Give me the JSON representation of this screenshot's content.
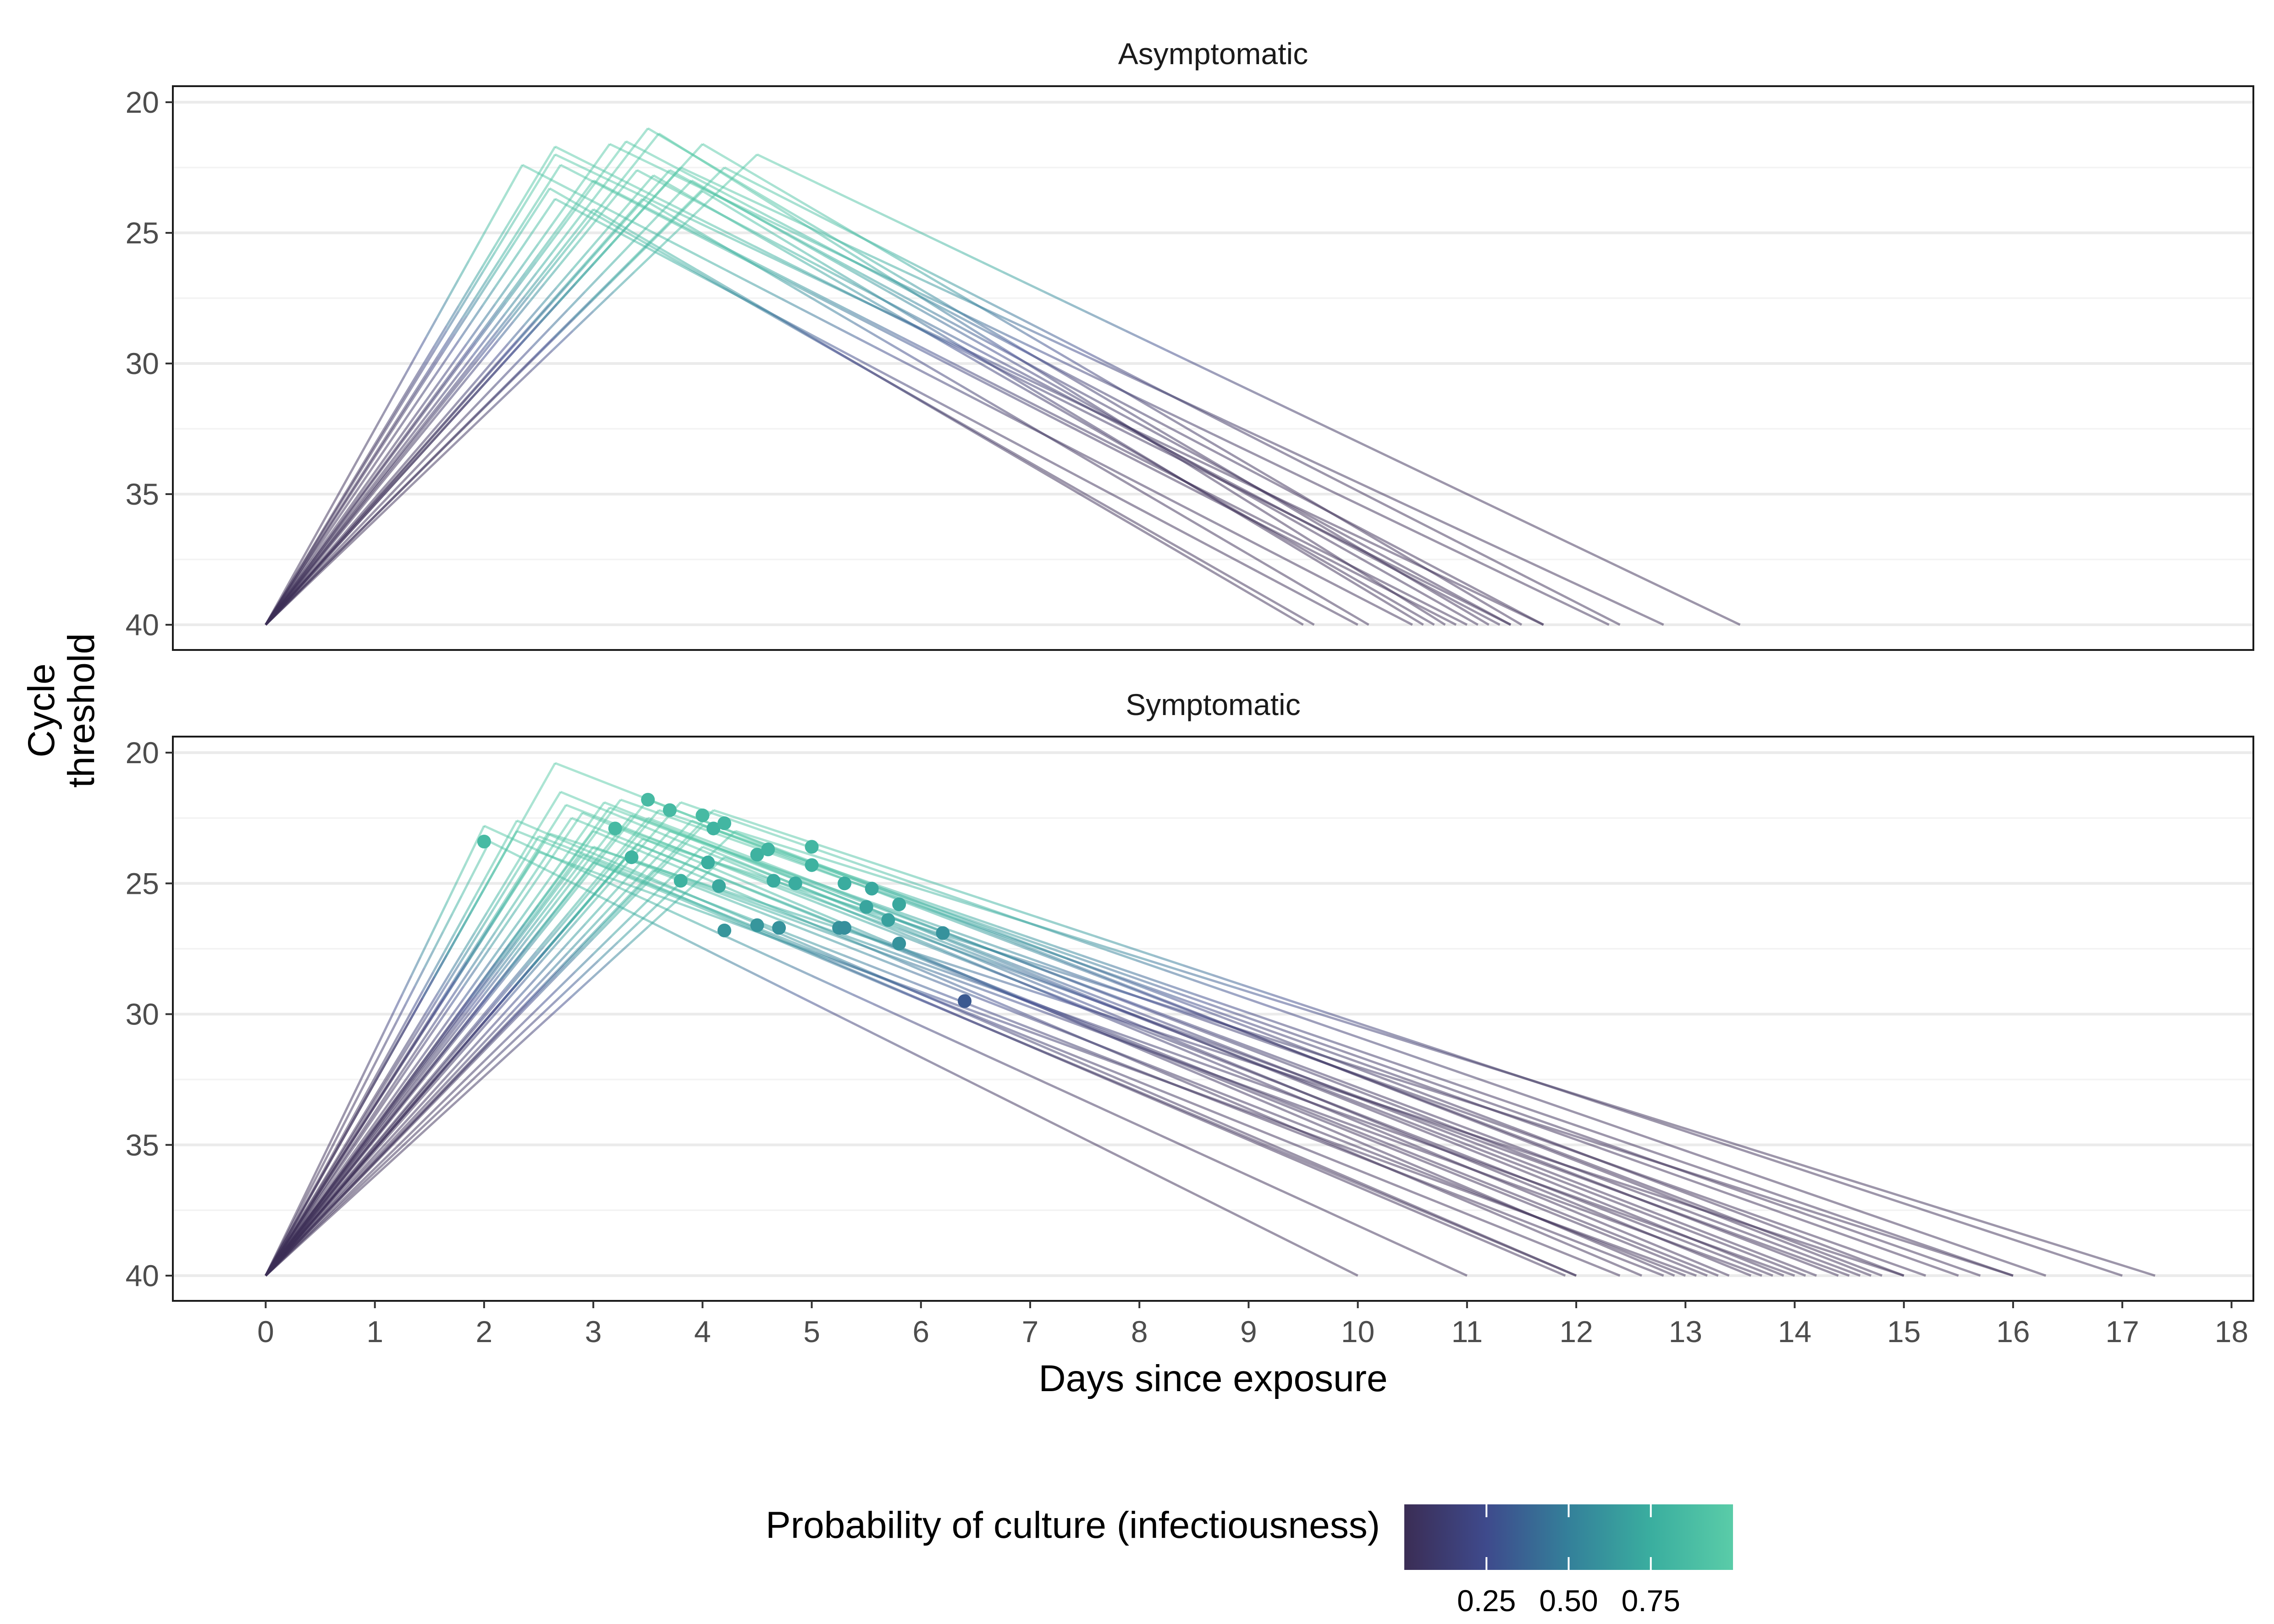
{
  "chart_data": {
    "type": "line",
    "facets": [
      "Asymptomatic",
      "Symptomatic"
    ],
    "xlabel": "Days since exposure",
    "ylabel": [
      "Cycle",
      "threshold"
    ],
    "xlim": [
      -0.85,
      18.2
    ],
    "ylim": [
      20,
      40
    ],
    "y_reversed": true,
    "x_ticks": [
      0,
      1,
      2,
      3,
      4,
      5,
      6,
      7,
      8,
      9,
      10,
      11,
      12,
      13,
      14,
      15,
      16,
      17,
      18
    ],
    "x_tick_labels": [
      "0",
      "1",
      "2",
      "3",
      "4",
      "5",
      "6",
      "7",
      "8",
      "9",
      "10",
      "11",
      "12",
      "13",
      "14",
      "15",
      "16",
      "17",
      "18"
    ],
    "y_ticks": [
      20,
      25,
      30,
      35,
      40
    ],
    "y_tick_labels": [
      "20",
      "25",
      "30",
      "35",
      "40"
    ],
    "y_minor_ticks": [
      22.5,
      27.5,
      32.5,
      37.5
    ],
    "legend": {
      "title": "Probability of culture (infectiousness)",
      "position": "bottom",
      "tick_values": [
        0.25,
        0.5,
        0.75
      ],
      "tick_labels": [
        "0.25",
        "0.50",
        "0.75"
      ],
      "range": [
        0,
        1
      ],
      "colors": [
        "#3b2d55",
        "#3e4a8c",
        "#34809a",
        "#3aae9f",
        "#5acca8"
      ]
    },
    "trajectories": {
      "Asymptomatic": [
        {
          "peak_day": 2.35,
          "peak_ct": 22.4,
          "end_day": 10.5
        },
        {
          "peak_day": 2.65,
          "peak_ct": 21.7,
          "end_day": 11.4
        },
        {
          "peak_day": 2.65,
          "peak_ct": 22.0,
          "end_day": 11.7
        },
        {
          "peak_day": 2.7,
          "peak_ct": 22.4,
          "end_day": 10.9
        },
        {
          "peak_day": 2.6,
          "peak_ct": 23.3,
          "end_day": 9.6
        },
        {
          "peak_day": 2.65,
          "peak_ct": 23.7,
          "end_day": 10.0
        },
        {
          "peak_day": 3.0,
          "peak_ct": 23.0,
          "end_day": 11.0
        },
        {
          "peak_day": 3.15,
          "peak_ct": 21.6,
          "end_day": 12.3
        },
        {
          "peak_day": 3.3,
          "peak_ct": 21.5,
          "end_day": 11.7
        },
        {
          "peak_day": 3.5,
          "peak_ct": 21.0,
          "end_day": 11.2
        },
        {
          "peak_day": 3.6,
          "peak_ct": 21.2,
          "end_day": 10.8
        },
        {
          "peak_day": 3.4,
          "peak_ct": 22.6,
          "end_day": 11.3
        },
        {
          "peak_day": 3.55,
          "peak_ct": 22.8,
          "end_day": 10.7
        },
        {
          "peak_day": 3.45,
          "peak_ct": 23.7,
          "end_day": 10.1
        },
        {
          "peak_day": 3.0,
          "peak_ct": 24.1,
          "end_day": 9.5
        },
        {
          "peak_day": 3.7,
          "peak_ct": 22.6,
          "end_day": 11.4
        },
        {
          "peak_day": 3.8,
          "peak_ct": 22.5,
          "end_day": 12.8
        },
        {
          "peak_day": 4.0,
          "peak_ct": 21.6,
          "end_day": 11.5
        },
        {
          "peak_day": 4.0,
          "peak_ct": 23.4,
          "end_day": 10.6
        },
        {
          "peak_day": 4.2,
          "peak_ct": 22.5,
          "end_day": 12.4
        },
        {
          "peak_day": 4.5,
          "peak_ct": 22.0,
          "end_day": 13.5
        },
        {
          "peak_day": 3.9,
          "peak_ct": 23.0,
          "end_day": 11.1
        }
      ],
      "Symptomatic": [
        {
          "peak_day": 2.05,
          "peak_ct": 23.4,
          "end_day": 10.0
        },
        {
          "peak_day": 2.0,
          "peak_ct": 22.8,
          "end_day": 11.0
        },
        {
          "peak_day": 2.3,
          "peak_ct": 22.6,
          "end_day": 12.0
        },
        {
          "peak_day": 2.3,
          "peak_ct": 23.0,
          "end_day": 12.4
        },
        {
          "peak_day": 2.5,
          "peak_ct": 23.2,
          "end_day": 12.8
        },
        {
          "peak_day": 2.5,
          "peak_ct": 23.8,
          "end_day": 13.1
        },
        {
          "peak_day": 2.65,
          "peak_ct": 20.4,
          "end_day": 14.7
        },
        {
          "peak_day": 2.7,
          "peak_ct": 21.5,
          "end_day": 13.4
        },
        {
          "peak_day": 2.75,
          "peak_ct": 22.0,
          "end_day": 13.8
        },
        {
          "peak_day": 2.8,
          "peak_ct": 22.5,
          "end_day": 13.2
        },
        {
          "peak_day": 2.9,
          "peak_ct": 22.3,
          "end_day": 12.9
        },
        {
          "peak_day": 3.0,
          "peak_ct": 23.0,
          "end_day": 12.6
        },
        {
          "peak_day": 3.0,
          "peak_ct": 23.6,
          "end_day": 13.7
        },
        {
          "peak_day": 3.1,
          "peak_ct": 21.9,
          "end_day": 13.9
        },
        {
          "peak_day": 3.15,
          "peak_ct": 22.1,
          "end_day": 14.2
        },
        {
          "peak_day": 3.2,
          "peak_ct": 22.8,
          "end_day": 14.5
        },
        {
          "peak_day": 3.25,
          "peak_ct": 21.8,
          "end_day": 15.5
        },
        {
          "peak_day": 3.3,
          "peak_ct": 24.0,
          "end_day": 14.0
        },
        {
          "peak_day": 3.4,
          "peak_ct": 23.5,
          "end_day": 13.3
        },
        {
          "peak_day": 3.5,
          "peak_ct": 21.8,
          "end_day": 15.0
        },
        {
          "peak_day": 3.5,
          "peak_ct": 22.5,
          "end_day": 14.4
        },
        {
          "peak_day": 3.55,
          "peak_ct": 24.5,
          "end_day": 13.0
        },
        {
          "peak_day": 3.6,
          "peak_ct": 22.2,
          "end_day": 16.0
        },
        {
          "peak_day": 3.7,
          "peak_ct": 23.0,
          "end_day": 15.2
        },
        {
          "peak_day": 3.8,
          "peak_ct": 21.9,
          "end_day": 16.3
        },
        {
          "peak_day": 3.9,
          "peak_ct": 22.6,
          "end_day": 14.8
        },
        {
          "peak_day": 4.0,
          "peak_ct": 22.8,
          "end_day": 15.7
        },
        {
          "peak_day": 4.1,
          "peak_ct": 22.2,
          "end_day": 17.0
        },
        {
          "peak_day": 4.2,
          "peak_ct": 24.0,
          "end_day": 14.1
        },
        {
          "peak_day": 4.3,
          "peak_ct": 23.0,
          "end_day": 17.3
        },
        {
          "peak_day": 3.0,
          "peak_ct": 24.2,
          "end_day": 12.0
        },
        {
          "peak_day": 2.9,
          "peak_ct": 23.9,
          "end_day": 11.9
        },
        {
          "peak_day": 3.45,
          "peak_ct": 23.3,
          "end_day": 16.0
        },
        {
          "peak_day": 2.6,
          "peak_ct": 23.1,
          "end_day": 15.0
        },
        {
          "peak_day": 3.35,
          "peak_ct": 22.4,
          "end_day": 14.6
        },
        {
          "peak_day": 4.0,
          "peak_ct": 23.6,
          "end_day": 13.6
        }
      ]
    },
    "points": {
      "Symptomatic": [
        {
          "x": 2.0,
          "y": 23.4,
          "p": 0.85
        },
        {
          "x": 3.2,
          "y": 22.9,
          "p": 0.85
        },
        {
          "x": 3.35,
          "y": 24.0,
          "p": 0.8
        },
        {
          "x": 3.5,
          "y": 21.8,
          "p": 0.85
        },
        {
          "x": 3.7,
          "y": 22.2,
          "p": 0.85
        },
        {
          "x": 3.8,
          "y": 24.9,
          "p": 0.78
        },
        {
          "x": 4.0,
          "y": 22.4,
          "p": 0.85
        },
        {
          "x": 4.05,
          "y": 24.2,
          "p": 0.75
        },
        {
          "x": 4.1,
          "y": 22.9,
          "p": 0.8
        },
        {
          "x": 4.15,
          "y": 25.1,
          "p": 0.72
        },
        {
          "x": 4.2,
          "y": 22.7,
          "p": 0.82
        },
        {
          "x": 4.2,
          "y": 26.8,
          "p": 0.62
        },
        {
          "x": 4.5,
          "y": 23.9,
          "p": 0.78
        },
        {
          "x": 4.5,
          "y": 26.6,
          "p": 0.62
        },
        {
          "x": 4.6,
          "y": 23.7,
          "p": 0.8
        },
        {
          "x": 4.65,
          "y": 24.9,
          "p": 0.74
        },
        {
          "x": 4.7,
          "y": 26.7,
          "p": 0.6
        },
        {
          "x": 4.85,
          "y": 25.0,
          "p": 0.74
        },
        {
          "x": 5.0,
          "y": 23.6,
          "p": 0.82
        },
        {
          "x": 5.0,
          "y": 24.3,
          "p": 0.78
        },
        {
          "x": 5.25,
          "y": 26.7,
          "p": 0.6
        },
        {
          "x": 5.3,
          "y": 25.0,
          "p": 0.74
        },
        {
          "x": 5.3,
          "y": 26.7,
          "p": 0.58
        },
        {
          "x": 5.5,
          "y": 25.9,
          "p": 0.7
        },
        {
          "x": 5.55,
          "y": 25.2,
          "p": 0.72
        },
        {
          "x": 5.7,
          "y": 26.4,
          "p": 0.68
        },
        {
          "x": 5.8,
          "y": 25.8,
          "p": 0.72
        },
        {
          "x": 5.8,
          "y": 27.3,
          "p": 0.6
        },
        {
          "x": 6.2,
          "y": 26.9,
          "p": 0.6
        },
        {
          "x": 6.4,
          "y": 29.5,
          "p": 0.32
        }
      ]
    }
  }
}
